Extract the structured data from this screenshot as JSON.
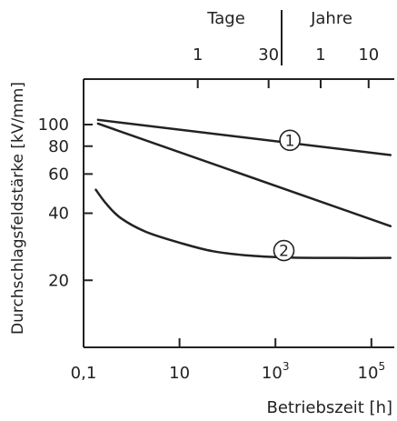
{
  "chart_data": {
    "type": "line",
    "xscale": "log",
    "yscale": "log",
    "xlim": [
      0.1,
      300000
    ],
    "ylim": [
      10,
      160
    ],
    "xlabel": "Betriebszeit [h]",
    "ylabel": "Durchschlagsfeldstärke [kV/mm]",
    "x_ticks": [
      {
        "value": 0.1,
        "label": "0,1"
      },
      {
        "value": 10,
        "label": "10"
      },
      {
        "value": 1000,
        "label": "10",
        "exp": "3"
      },
      {
        "value": 100000,
        "label": "10",
        "exp": "5"
      }
    ],
    "y_ticks": [
      {
        "value": 20,
        "label": "20"
      },
      {
        "value": 40,
        "label": "40"
      },
      {
        "value": 60,
        "label": "60"
      },
      {
        "value": 80,
        "label": "80"
      },
      {
        "value": 100,
        "label": "100"
      }
    ],
    "top_axis": {
      "left_title": "Tage",
      "right_title": "Jahre",
      "ticks": [
        {
          "value": 24,
          "label": "1"
        },
        {
          "value": 720,
          "label": "30"
        },
        {
          "value": 8760,
          "label": "1"
        },
        {
          "value": 87600,
          "label": "10"
        }
      ]
    },
    "series": [
      {
        "id": "upper",
        "name": "",
        "x": [
          0.2,
          250000
        ],
        "y": [
          105,
          73
        ]
      },
      {
        "id": "1",
        "name": "1",
        "x": [
          0.2,
          250000
        ],
        "y": [
          101,
          35
        ]
      },
      {
        "id": "2",
        "name": "2",
        "x": [
          0.18,
          0.3,
          0.6,
          2,
          10,
          50,
          300,
          2000,
          20000,
          250000
        ],
        "y": [
          51,
          44,
          38,
          33,
          29.5,
          27,
          25.8,
          25.3,
          25.2,
          25.2
        ]
      }
    ],
    "annotations": [
      {
        "label": "1",
        "x": 2000,
        "y": 85
      },
      {
        "label": "2",
        "x": 1500,
        "y": 27.2
      }
    ]
  }
}
